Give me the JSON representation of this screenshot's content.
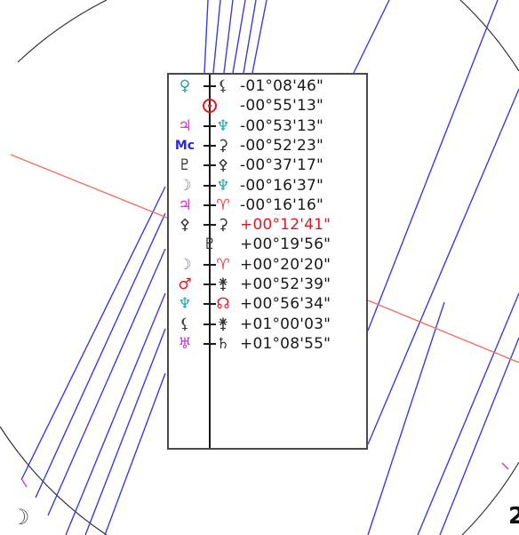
{
  "colors": {
    "aspect_line_blue": "#3a3ae8",
    "horizon_line_red": "#f07060",
    "highlight_red": "#e8161c",
    "text_dark": "#1a1a1a",
    "chart_circle": "#333333",
    "tick_magenta": "#e040e0"
  },
  "aspect_table": {
    "rows": [
      {
        "glyph_left": "♀",
        "glyph_left_color": "#20a8a0",
        "glyph_right": "⚸",
        "glyph_right_color": "#444444",
        "value": "-01°08'46\"",
        "highlight": false
      },
      {
        "glyph_center_icon": "sun-icon",
        "value": "-00°55'13\"",
        "highlight": false
      },
      {
        "glyph_left": "♃",
        "glyph_left_color": "#d030d0",
        "glyph_right": "♆",
        "glyph_right_color": "#20a8a0",
        "value": "-00°53'13\"",
        "highlight": false
      },
      {
        "glyph_left": "Mc",
        "glyph_left_color": "#2a2ad8",
        "glyph_right": "⚳",
        "glyph_right_color": "#333333",
        "value": "-00°52'23\"",
        "highlight": false
      },
      {
        "glyph_left": "♇",
        "glyph_left_color": "#333333",
        "glyph_right": "⚴",
        "glyph_right_color": "#333333",
        "value": "-00°37'17\"",
        "highlight": false
      },
      {
        "glyph_left": "☽",
        "glyph_left_color": "#888888",
        "glyph_right": "♆",
        "glyph_right_color": "#20a8a0",
        "value": "-00°16'37\"",
        "highlight": false
      },
      {
        "glyph_left": "♃",
        "glyph_left_color": "#d030d0",
        "glyph_right": "♈",
        "glyph_right_color": "#f04040",
        "value": "-00°16'16\"",
        "highlight": false
      },
      {
        "glyph_left": "⚴",
        "glyph_left_color": "#333333",
        "glyph_right": "⚳",
        "glyph_right_color": "#333333",
        "value": "+00°12'41\"",
        "highlight": true
      },
      {
        "glyph_center": "♇",
        "glyph_center_color": "#333333",
        "value": "+00°19'56\"",
        "highlight": false
      },
      {
        "glyph_left": "☽",
        "glyph_left_color": "#888888",
        "glyph_right": "♈",
        "glyph_right_color": "#f04040",
        "value": "+00°20'20\"",
        "highlight": false
      },
      {
        "glyph_left": "♂",
        "glyph_left_color": "#e8161c",
        "glyph_right": "⚵",
        "glyph_right_color": "#333333",
        "value": "+00°52'39\"",
        "highlight": false
      },
      {
        "glyph_left": "♆",
        "glyph_left_color": "#20a8a0",
        "glyph_right": "☊",
        "glyph_right_color": "#e8161c",
        "value": "+00°56'34\"",
        "highlight": false
      },
      {
        "glyph_left": "⚸",
        "glyph_left_color": "#444444",
        "glyph_right": "⚵",
        "glyph_right_color": "#333333",
        "value": "+01°00'03\"",
        "highlight": false
      },
      {
        "glyph_left": "♅",
        "glyph_left_color": "#d030d0",
        "glyph_right": "♄",
        "glyph_right_color": "#333333",
        "value": "+01°08'55\"",
        "highlight": false
      }
    ]
  },
  "corner_label": "2",
  "moon_glyph": "☽"
}
